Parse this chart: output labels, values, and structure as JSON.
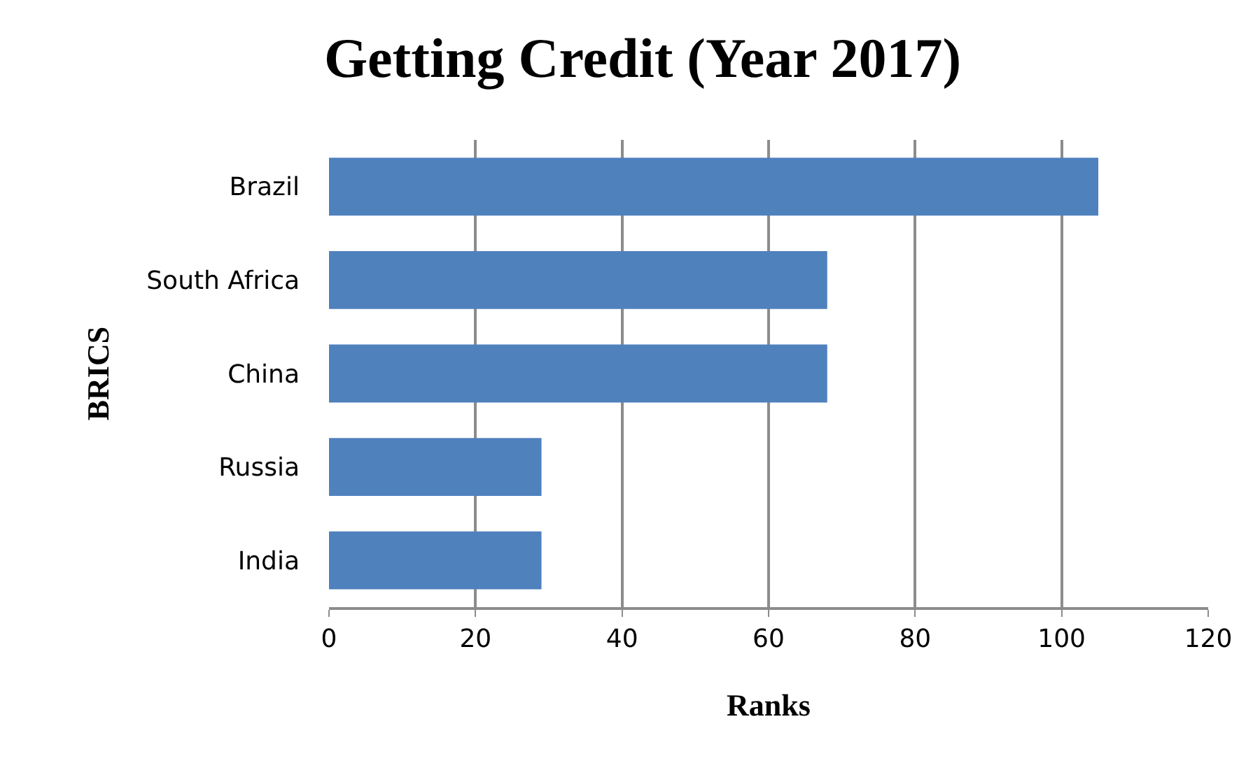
{
  "chart_data": {
    "type": "bar",
    "title": "Getting Credit (Year 2017)",
    "orientation": "horizontal",
    "categories": [
      "Brazil",
      "South Africa",
      "China",
      "Russia",
      "India"
    ],
    "values": [
      105,
      68,
      68,
      29,
      29
    ],
    "color": "#4f81bd",
    "xlabel": "Ranks",
    "ylabel": "BRICS",
    "xlim": [
      0,
      120
    ],
    "xticks": [
      0,
      20,
      40,
      60,
      80,
      100,
      120
    ],
    "grid": "x"
  }
}
